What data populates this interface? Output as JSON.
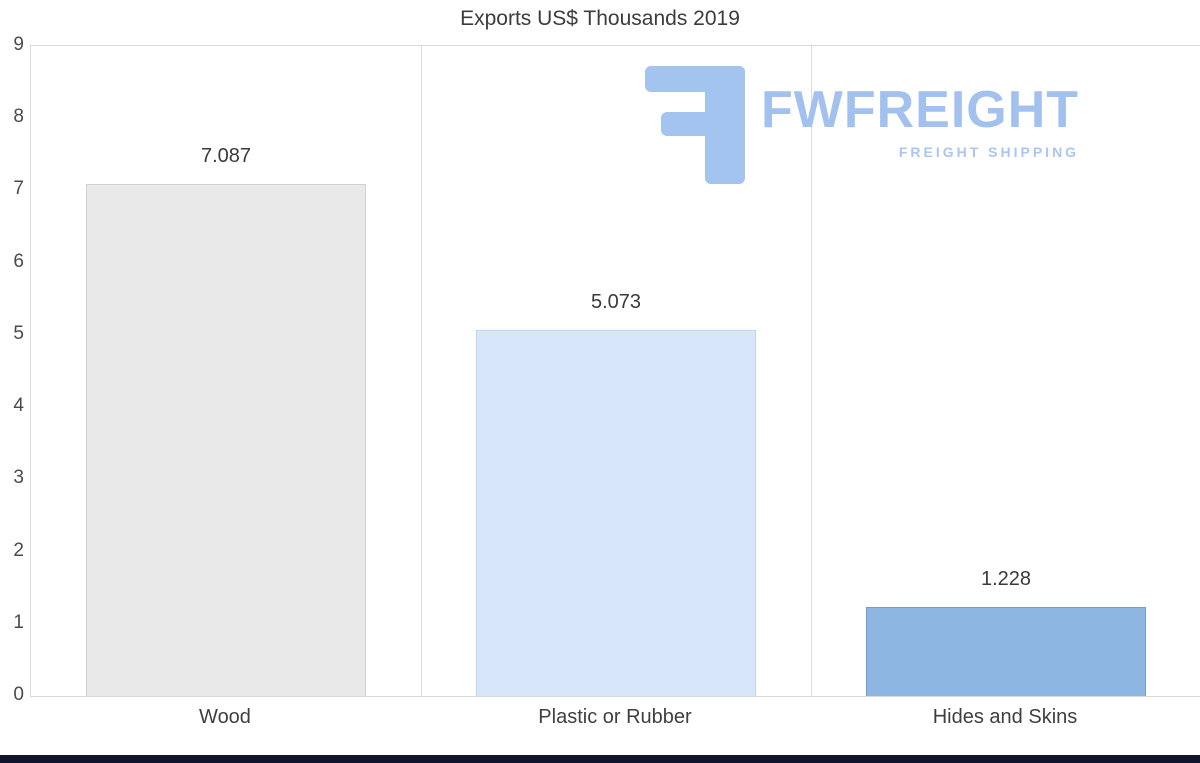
{
  "chart_data": {
    "type": "bar",
    "title": "Exports US$ Thousands 2019",
    "categories": [
      "Wood",
      "Plastic or Rubber",
      "Hides and Skins"
    ],
    "values": [
      7.087,
      5.073,
      1.228
    ],
    "value_labels": [
      "7.087",
      "5.073",
      "1.228"
    ],
    "bar_colors": [
      "#e9e9e9",
      "#d7e7f9",
      "#8db6e2"
    ],
    "bar_border_colors": [
      "#d2d2d2",
      "#bed5f0",
      "#6f9fd2"
    ],
    "ylim": [
      0,
      9
    ],
    "ytick_labels": [
      "0",
      "1",
      "2",
      "3",
      "4",
      "5",
      "6",
      "7",
      "8",
      "9"
    ],
    "xlabel": "",
    "ylabel": "",
    "grid": "vertical category separators, light gray",
    "legend": "none"
  },
  "watermark": {
    "brand": "FWFREIGHT",
    "tagline": "FREIGHT SHIPPING",
    "brand_color": "#a3c1ee",
    "tagline_color": "#abc6f0",
    "icon_color": "#a4c4f0"
  },
  "footer": {
    "color": "#10152a"
  }
}
